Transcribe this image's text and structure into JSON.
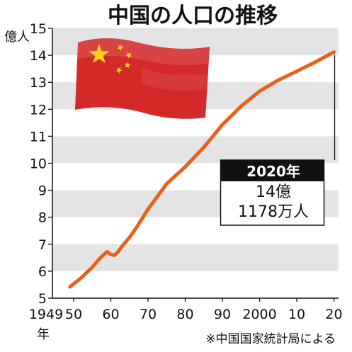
{
  "chart_data": {
    "type": "line",
    "title": "中国の人口の推移",
    "ylabel": "億人",
    "ylim": [
      5,
      15
    ],
    "yticks": [
      5,
      6,
      7,
      8,
      9,
      10,
      11,
      12,
      13,
      14,
      15
    ],
    "xlim": [
      1949,
      2020
    ],
    "xticks": [
      {
        "x": 1949,
        "label": "1949"
      },
      {
        "x": 1950,
        "label": "50"
      },
      {
        "x": 1960,
        "label": "60"
      },
      {
        "x": 1970,
        "label": "70"
      },
      {
        "x": 1980,
        "label": "80"
      },
      {
        "x": 1990,
        "label": "90"
      },
      {
        "x": 2000,
        "label": "2000"
      },
      {
        "x": 2010,
        "label": "10"
      },
      {
        "x": 2020,
        "label": "20"
      }
    ],
    "xunit": "年",
    "grid": "alternating horizontal bands",
    "line_color": "#e8601c",
    "series": [
      {
        "x": [
          1949,
          1952,
          1955,
          1957,
          1958,
          1959,
          1960,
          1961,
          1962,
          1963,
          1965,
          1967,
          1970,
          1975,
          1980,
          1985,
          1990,
          1995,
          2000,
          2005,
          2010,
          2015,
          2020
        ],
        "values": [
          5.42,
          5.75,
          6.15,
          6.47,
          6.6,
          6.72,
          6.62,
          6.59,
          6.73,
          6.92,
          7.25,
          7.64,
          8.3,
          9.24,
          9.87,
          10.59,
          11.43,
          12.11,
          12.67,
          13.08,
          13.41,
          13.75,
          14.12
        ]
      }
    ],
    "annotation": {
      "year_label": "2020年",
      "value_line1": "14億",
      "value_line2": "1178万人"
    },
    "source": "※中国国家統計局による"
  },
  "flag": {
    "name": "china-flag",
    "field_color": "#d21f1f",
    "star_color": "#ffd21a"
  }
}
